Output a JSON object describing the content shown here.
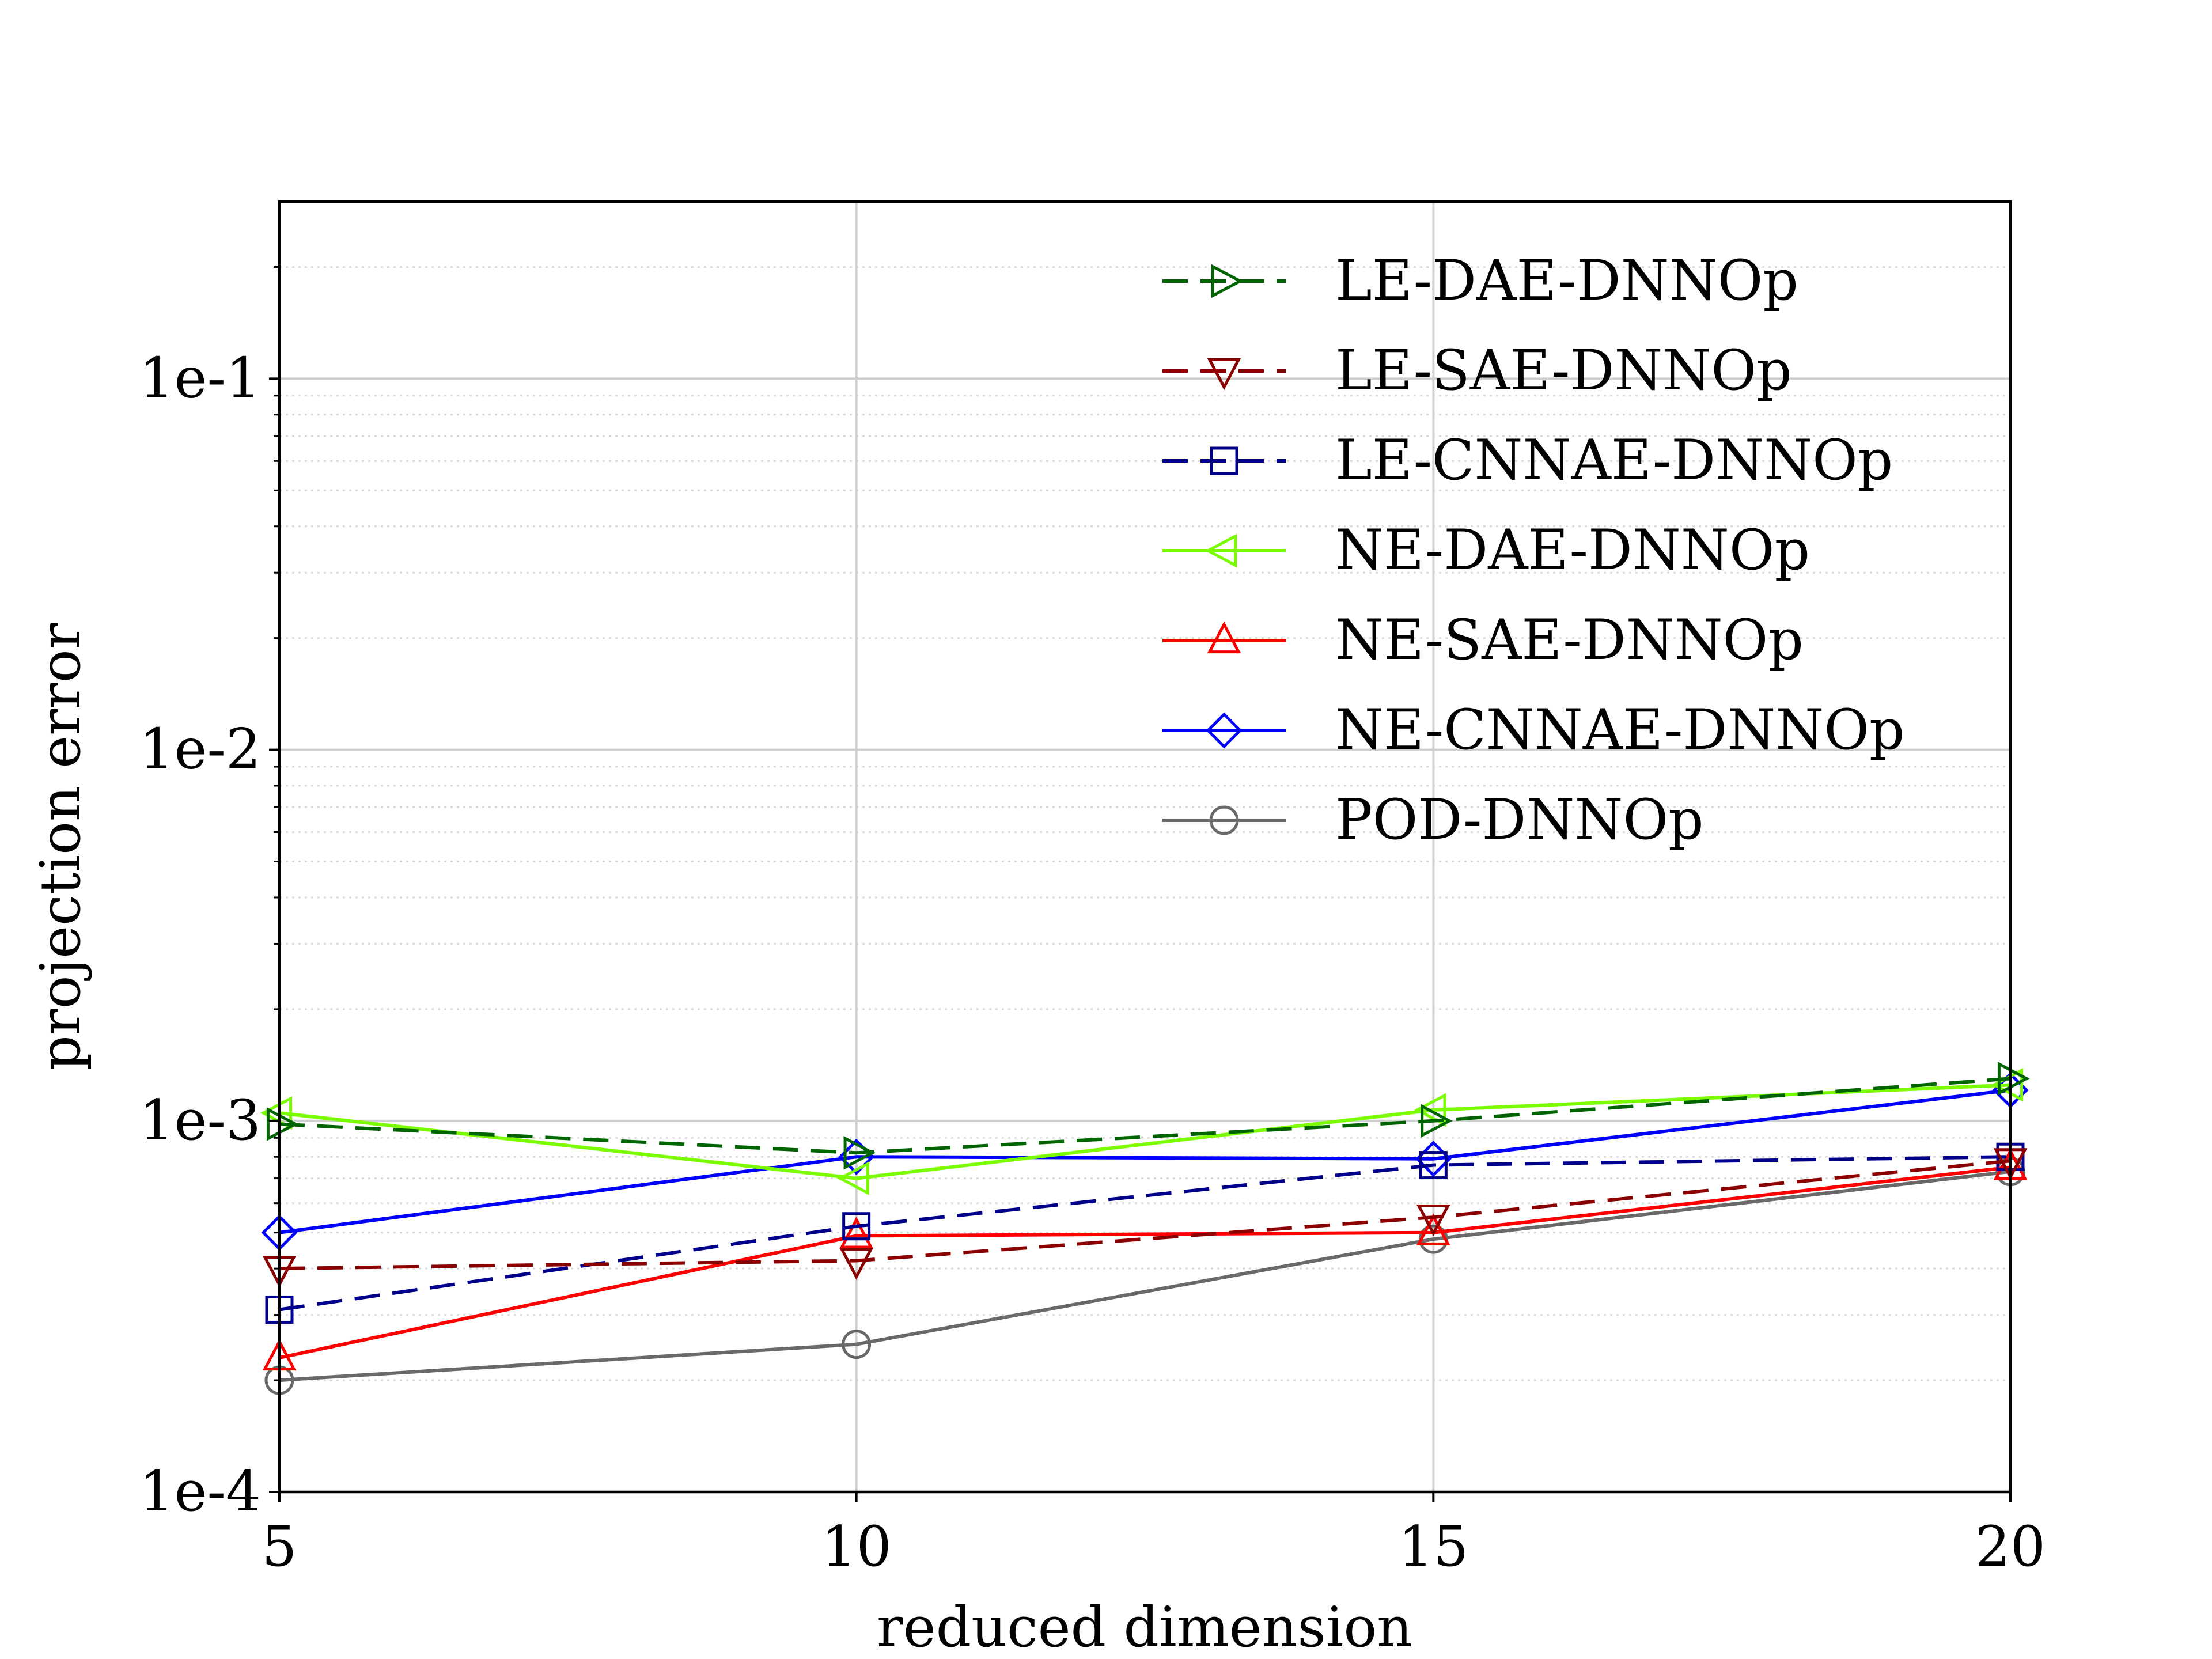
{
  "chart_data": {
    "type": "line",
    "title": "",
    "xlabel": "reduced dimension",
    "ylabel": "projection error",
    "yscale": "log",
    "xlim": [
      5,
      20
    ],
    "ylim": [
      0.0001,
      0.3
    ],
    "x": [
      5,
      10,
      15,
      20
    ],
    "xticks": [
      5,
      10,
      15,
      20
    ],
    "xtick_labels": [
      "5",
      "10",
      "15",
      "20"
    ],
    "yticks": [
      0.0001,
      0.001,
      0.01,
      0.1
    ],
    "ytick_labels": [
      "1e-4",
      "1e-3",
      "1e-2",
      "1e-1"
    ],
    "grid": true,
    "legend_position": "top-right",
    "series": [
      {
        "name": "LE-DAE-DNNOp",
        "values": [
          0.00098,
          0.00082,
          0.001,
          0.0013
        ],
        "color": "#006400",
        "dash": "dashed",
        "marker": "triangle-right"
      },
      {
        "name": "LE-SAE-DNNOp",
        "values": [
          0.0004,
          0.00042,
          0.00055,
          0.00078
        ],
        "color": "#8b0000",
        "dash": "dashed",
        "marker": "triangle-down"
      },
      {
        "name": "LE-CNNAE-DNNOp",
        "values": [
          0.00031,
          0.00052,
          0.00076,
          0.0008
        ],
        "color": "#00008b",
        "dash": "dashed",
        "marker": "square"
      },
      {
        "name": "NE-DAE-DNNOp",
        "values": [
          0.00105,
          0.0007,
          0.00107,
          0.00125
        ],
        "color": "#7cfc00",
        "dash": "solid",
        "marker": "triangle-left"
      },
      {
        "name": "NE-SAE-DNNOp",
        "values": [
          0.00023,
          0.00049,
          0.0005,
          0.00075
        ],
        "color": "#ff0000",
        "dash": "solid",
        "marker": "triangle-up"
      },
      {
        "name": "NE-CNNAE-DNNOp",
        "values": [
          0.0005,
          0.0008,
          0.00079,
          0.00121
        ],
        "color": "#0000ff",
        "dash": "solid",
        "marker": "diamond"
      },
      {
        "name": "POD-DNNOp",
        "values": [
          0.0002,
          0.00025,
          0.00048,
          0.00073
        ],
        "color": "#696969",
        "dash": "solid",
        "marker": "circle"
      }
    ]
  }
}
